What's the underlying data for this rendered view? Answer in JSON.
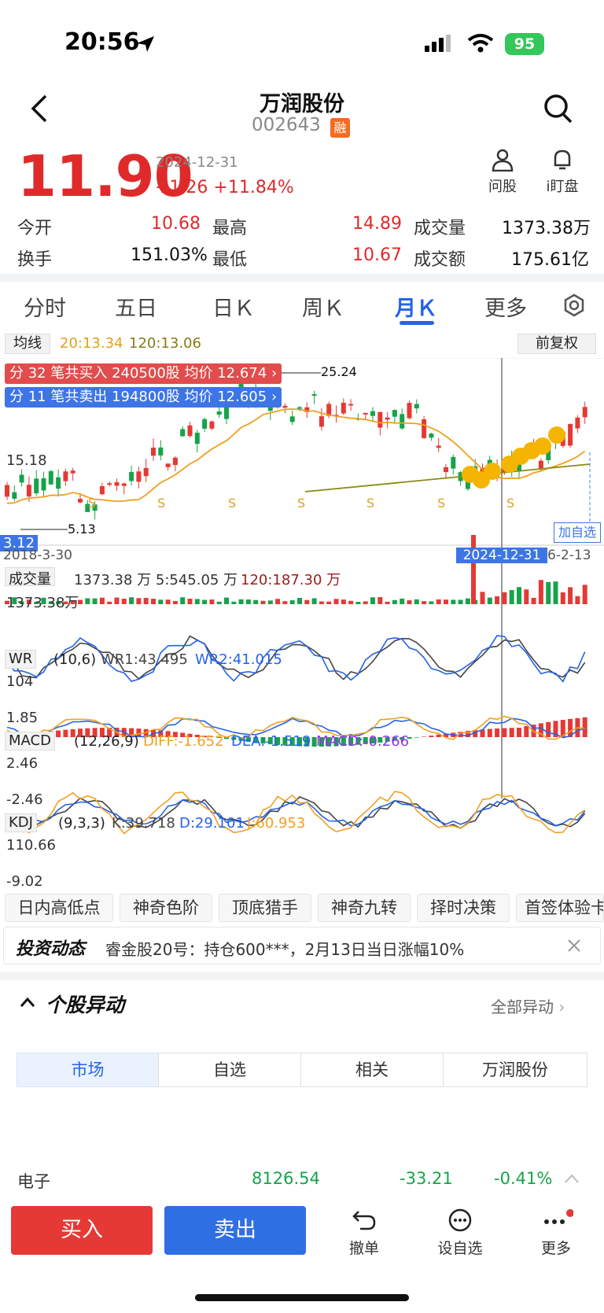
{
  "status": {
    "time": "20:56",
    "battery": "95"
  },
  "header": {
    "title": "万润股份",
    "code": "002643",
    "tag": "融"
  },
  "quote": {
    "price": "11.90",
    "date": "2024-12-31",
    "change": "+1.26",
    "pct": "+11.84%"
  },
  "quick": [
    {
      "label": "问股"
    },
    {
      "label": "i盯盘"
    }
  ],
  "stats": {
    "open_l": "今开",
    "open_v": "10.68",
    "high_l": "最高",
    "high_v": "14.89",
    "vol_l": "成交量",
    "vol_v": "1373.38万",
    "turn_l": "换手",
    "turn_v": "151.03%",
    "low_l": "最低",
    "low_v": "10.67",
    "amt_l": "成交额",
    "amt_v": "175.61亿"
  },
  "tabs": [
    "分时",
    "五日",
    "日Ｋ",
    "周Ｋ",
    "月Ｋ",
    "更多"
  ],
  "chart": {
    "ma_label": "均线",
    "ma_vals": "20:13.34",
    "ma_vals2": "120:13.06",
    "fq": "前复权",
    "buy": "分 32 笔共买入 240500股 均价 12.674",
    "sell": "分 11 笔共卖出 194800股 均价 12.605",
    "hi": "25.24",
    "lo": "5.13",
    "y1": "15.18",
    "ybot": "3.12",
    "d_left": "2018-3-30",
    "d_cross": "2024-12-31",
    "d_right": "6-2-13",
    "add": "加自选",
    "vol_label": "成交量",
    "vol_info": "1373.38 万  5:545.05 万",
    "vol_info2": "120:187.30 万",
    "vol_max": "1373.38万",
    "wr_label": "WR",
    "wr_p": "(10,6)",
    "wr1": "WR1:43.495",
    "wr2": "WR2:41.015",
    "wr_hi": "104",
    "wr_lo": "1.85",
    "macd_label": "MACD",
    "macd_p": "(12,26,9)",
    "diff": "DIFF:-1.652",
    "dea": "DEA:-1.519",
    "macd": "MACD:-0.266",
    "macd_hi": "2.46",
    "macd_lo": "-2.46",
    "kdj_label": "KDJ",
    "kdj_p": "(9,3,3)",
    "k": "K:39.718",
    "d": "D:29.101",
    "j": "J:60.953",
    "kdj_hi": "110.66",
    "kdj_lo": "-9.02"
  },
  "tools": [
    "日内高低点",
    "神奇色阶",
    "顶底猎手",
    "神奇九转",
    "择时决策",
    "首签体验卡"
  ],
  "news": {
    "label": "投资动态",
    "text": "睿金股20号：持仓600***，2月13日当日涨幅10%"
  },
  "anomaly": {
    "title": "个股异动",
    "all": "全部异动"
  },
  "segments": [
    "市场",
    "自选",
    "相关",
    "万润股份"
  ],
  "row": {
    "name": "电子",
    "v1": "8126.54",
    "v2": "-33.21",
    "v3": "-0.41%"
  },
  "bottom": {
    "buy": "买入",
    "sell": "卖出",
    "cancel": "撤单",
    "watch": "设自选",
    "more": "更多"
  }
}
